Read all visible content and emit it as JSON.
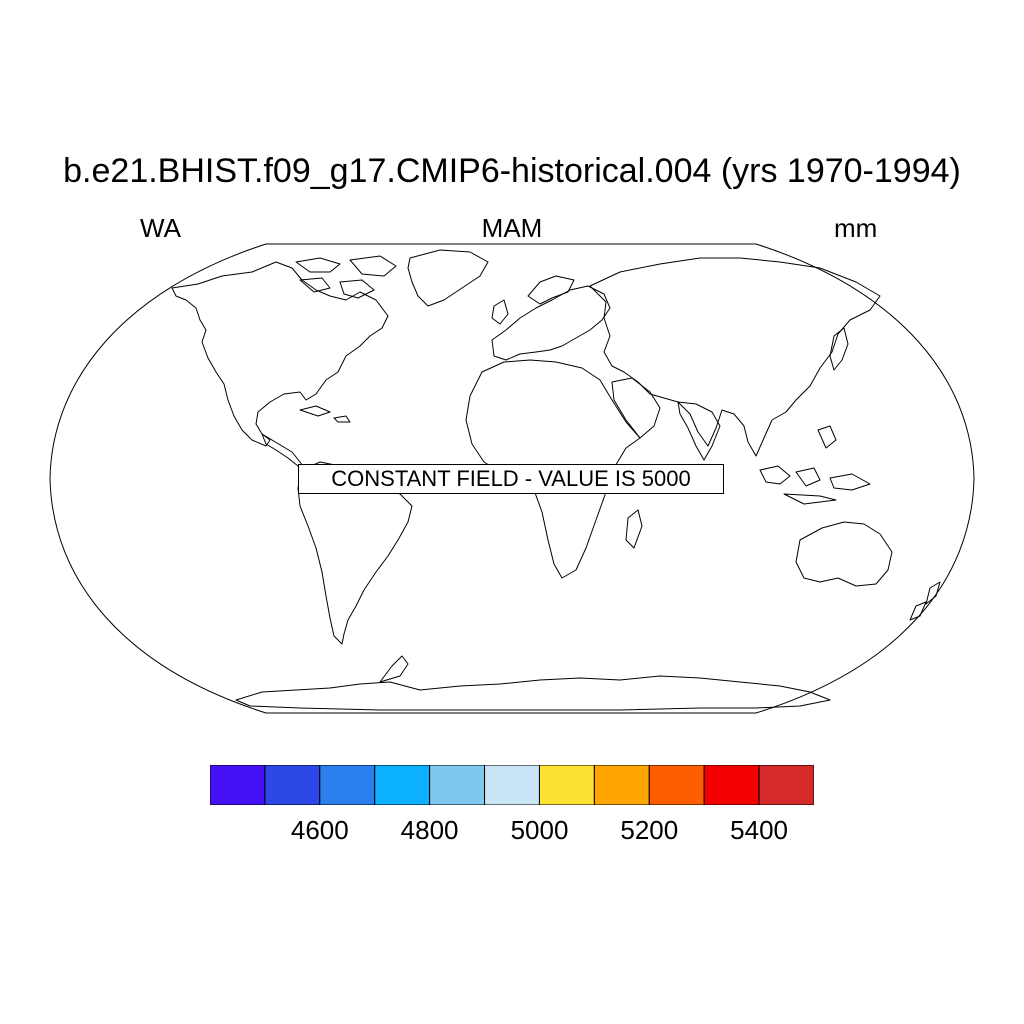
{
  "title": "b.e21.BHIST.f09_g17.CMIP6-historical.004 (yrs 1970-1994)",
  "subtitle": {
    "left": "WA",
    "center": "MAM",
    "right": "mm"
  },
  "map": {
    "projection": "robinson",
    "message": "CONSTANT FIELD - VALUE IS 5000"
  },
  "colorbar": {
    "colors": [
      "#4410f6",
      "#2c48e6",
      "#2c80ee",
      "#0bb0ff",
      "#7ec8ee",
      "#c8e4f5",
      "#fde233",
      "#fea501",
      "#ff5e00",
      "#f30000",
      "#d42a2a"
    ],
    "tick_values": [
      4600,
      4800,
      5000,
      5200,
      5400
    ],
    "tick_labels": [
      "4600",
      "4800",
      "5000",
      "5200",
      "5400"
    ]
  }
}
